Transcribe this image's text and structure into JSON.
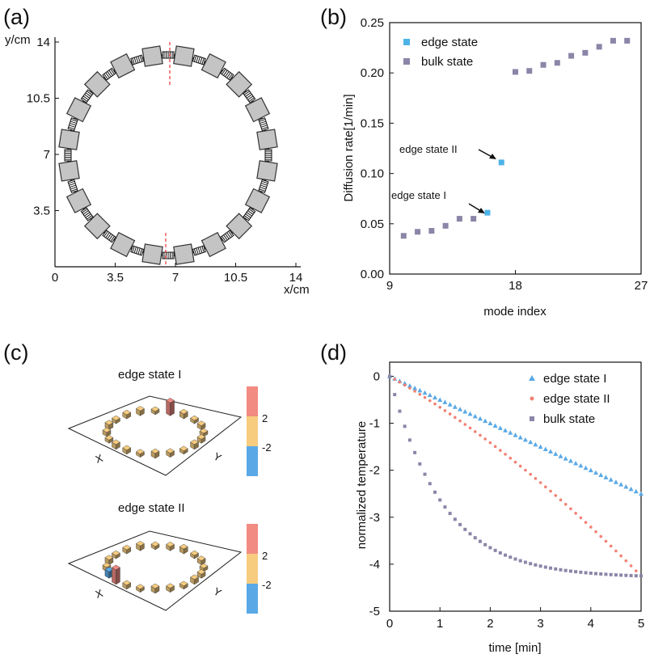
{
  "panels": {
    "a": {
      "label": "(a)",
      "xlabel": "x/cm",
      "ylabel": "y/cm",
      "x_ticks": [
        "0",
        "3.5",
        "7",
        "10.5",
        "14"
      ],
      "y_ticks": [
        "3.5",
        "7",
        "10.5",
        "14"
      ],
      "x_tick_values": [
        0,
        3.5,
        7,
        10.5,
        14
      ],
      "y_tick_values": [
        3.5,
        7,
        10.5,
        14
      ],
      "ring_units": 20
    },
    "b": {
      "label": "(b)"
    },
    "c": {
      "label": "(c)",
      "plot1_title": "edge state  I",
      "plot2_title": "edge state  II",
      "axis_x": "X",
      "axis_y": "Y",
      "colorbar_ticks": [
        "2",
        "-2"
      ],
      "colorbar_colors": [
        "#f28b82",
        "#f7cc7f",
        "#5aa9e6"
      ]
    },
    "d": {
      "label": "(d)"
    }
  },
  "chart_data": [
    {
      "type": "scatter",
      "title": "",
      "xlabel": "mode  index",
      "ylabel": "Diffusion  rate[1/min]",
      "xlim": [
        9,
        27
      ],
      "ylim": [
        0,
        0.25
      ],
      "x_ticks": [
        "9",
        "18",
        "27"
      ],
      "y_ticks": [
        "0.00",
        "0.05",
        "0.10",
        "0.15",
        "0.20",
        "0.25"
      ],
      "legend_position": "top-left",
      "annotations": [
        "edge state  II",
        "edge state  I"
      ],
      "series": [
        {
          "name": "edge state",
          "color": "#4db3e6",
          "x": [
            16,
            17
          ],
          "y": [
            0.061,
            0.111
          ]
        },
        {
          "name": "bulk state",
          "color": "#8b85a8",
          "x": [
            10,
            11,
            12,
            13,
            14,
            15,
            18,
            19,
            20,
            21,
            22,
            23,
            24,
            25,
            26
          ],
          "y": [
            0.038,
            0.042,
            0.043,
            0.048,
            0.055,
            0.055,
            0.201,
            0.202,
            0.208,
            0.21,
            0.217,
            0.22,
            0.226,
            0.232,
            0.232
          ]
        }
      ]
    },
    {
      "type": "scatter",
      "title": "",
      "xlabel": "time [min]",
      "ylabel": "normalized temperature",
      "xlim": [
        0,
        5
      ],
      "ylim": [
        -5,
        0.3
      ],
      "x_ticks": [
        "0",
        "1",
        "2",
        "3",
        "4",
        "5"
      ],
      "y_ticks": [
        "0",
        "-1",
        "-2",
        "-3",
        "-4",
        "-5"
      ],
      "legend_position": "top-right",
      "series": [
        {
          "name": "edge state I",
          "color": "#5aa9e6",
          "marker": "triangle",
          "model": "linear",
          "y_end": -2.5
        },
        {
          "name": "edge state II",
          "color": "#f28072",
          "marker": "circle",
          "model": "quadratic",
          "y_end": -4.25
        },
        {
          "name": "bulk state",
          "color": "#8b85a8",
          "marker": "square",
          "model": "exponential",
          "y_end": -4.25
        }
      ]
    }
  ]
}
